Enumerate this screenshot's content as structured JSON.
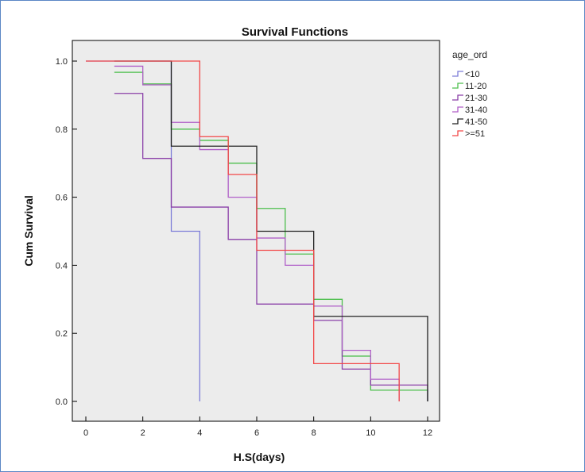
{
  "chart_data": {
    "type": "line",
    "step": true,
    "title": "Survival Functions",
    "xlabel": "H.S(days)",
    "ylabel": "Cum Survival",
    "xlim": [
      0,
      12
    ],
    "ylim": [
      0,
      1
    ],
    "x_ticks": [
      "0",
      "2",
      "4",
      "6",
      "8",
      "10",
      "12"
    ],
    "y_ticks": [
      "0.0",
      "0.2",
      "0.4",
      "0.6",
      "0.8",
      "1.0"
    ],
    "grid": false,
    "legend_title": "age_ord",
    "legend_position": "right",
    "series": [
      {
        "name": "<10",
        "color": "#7d7dd8",
        "points": [
          [
            0,
            1.0
          ],
          [
            3,
            1.0
          ],
          [
            3,
            0.5
          ],
          [
            4,
            0.5
          ],
          [
            4,
            0.0
          ]
        ]
      },
      {
        "name": "11-20",
        "color": "#4dbf4d",
        "points": [
          [
            1,
            0.967
          ],
          [
            2,
            0.967
          ],
          [
            2,
            0.933
          ],
          [
            3,
            0.933
          ],
          [
            3,
            0.8
          ],
          [
            4,
            0.8
          ],
          [
            4,
            0.767
          ],
          [
            5,
            0.767
          ],
          [
            5,
            0.7
          ],
          [
            6,
            0.7
          ],
          [
            6,
            0.567
          ],
          [
            7,
            0.567
          ],
          [
            7,
            0.433
          ],
          [
            8,
            0.433
          ],
          [
            8,
            0.3
          ],
          [
            9,
            0.3
          ],
          [
            9,
            0.133
          ],
          [
            10,
            0.133
          ],
          [
            10,
            0.033
          ],
          [
            12,
            0.033
          ],
          [
            12,
            0.0
          ]
        ]
      },
      {
        "name": "21-30",
        "color": "#8a3fa8",
        "points": [
          [
            1,
            0.905
          ],
          [
            2,
            0.905
          ],
          [
            2,
            0.714
          ],
          [
            3,
            0.714
          ],
          [
            3,
            0.571
          ],
          [
            5,
            0.571
          ],
          [
            5,
            0.476
          ],
          [
            6,
            0.476
          ],
          [
            6,
            0.286
          ],
          [
            8,
            0.286
          ],
          [
            8,
            0.238
          ],
          [
            9,
            0.238
          ],
          [
            9,
            0.095
          ],
          [
            10,
            0.095
          ],
          [
            10,
            0.048
          ],
          [
            12,
            0.048
          ],
          [
            12,
            0.0
          ]
        ]
      },
      {
        "name": "31-40",
        "color": "#b05fc8",
        "points": [
          [
            1,
            0.985
          ],
          [
            2,
            0.985
          ],
          [
            2,
            0.93
          ],
          [
            3,
            0.93
          ],
          [
            3,
            0.82
          ],
          [
            4,
            0.82
          ],
          [
            4,
            0.74
          ],
          [
            5,
            0.74
          ],
          [
            5,
            0.6
          ],
          [
            6,
            0.6
          ],
          [
            6,
            0.48
          ],
          [
            7,
            0.48
          ],
          [
            7,
            0.4
          ],
          [
            8,
            0.4
          ],
          [
            8,
            0.28
          ],
          [
            9,
            0.28
          ],
          [
            9,
            0.15
          ],
          [
            10,
            0.15
          ],
          [
            10,
            0.065
          ],
          [
            11,
            0.065
          ],
          [
            11,
            0.0
          ]
        ]
      },
      {
        "name": "41-50",
        "color": "#222222",
        "points": [
          [
            1,
            1.0
          ],
          [
            3,
            1.0
          ],
          [
            3,
            0.75
          ],
          [
            6,
            0.75
          ],
          [
            6,
            0.5
          ],
          [
            8,
            0.5
          ],
          [
            8,
            0.25
          ],
          [
            12,
            0.25
          ],
          [
            12,
            0.0
          ]
        ]
      },
      {
        "name": ">=51",
        "color": "#f24848",
        "points": [
          [
            0,
            1.0
          ],
          [
            4,
            1.0
          ],
          [
            4,
            0.778
          ],
          [
            5,
            0.778
          ],
          [
            5,
            0.667
          ],
          [
            6,
            0.667
          ],
          [
            6,
            0.444
          ],
          [
            7,
            0.444
          ],
          [
            7,
            0.444
          ],
          [
            8,
            0.444
          ],
          [
            8,
            0.111
          ],
          [
            11,
            0.111
          ],
          [
            11,
            0.0
          ]
        ]
      }
    ]
  }
}
